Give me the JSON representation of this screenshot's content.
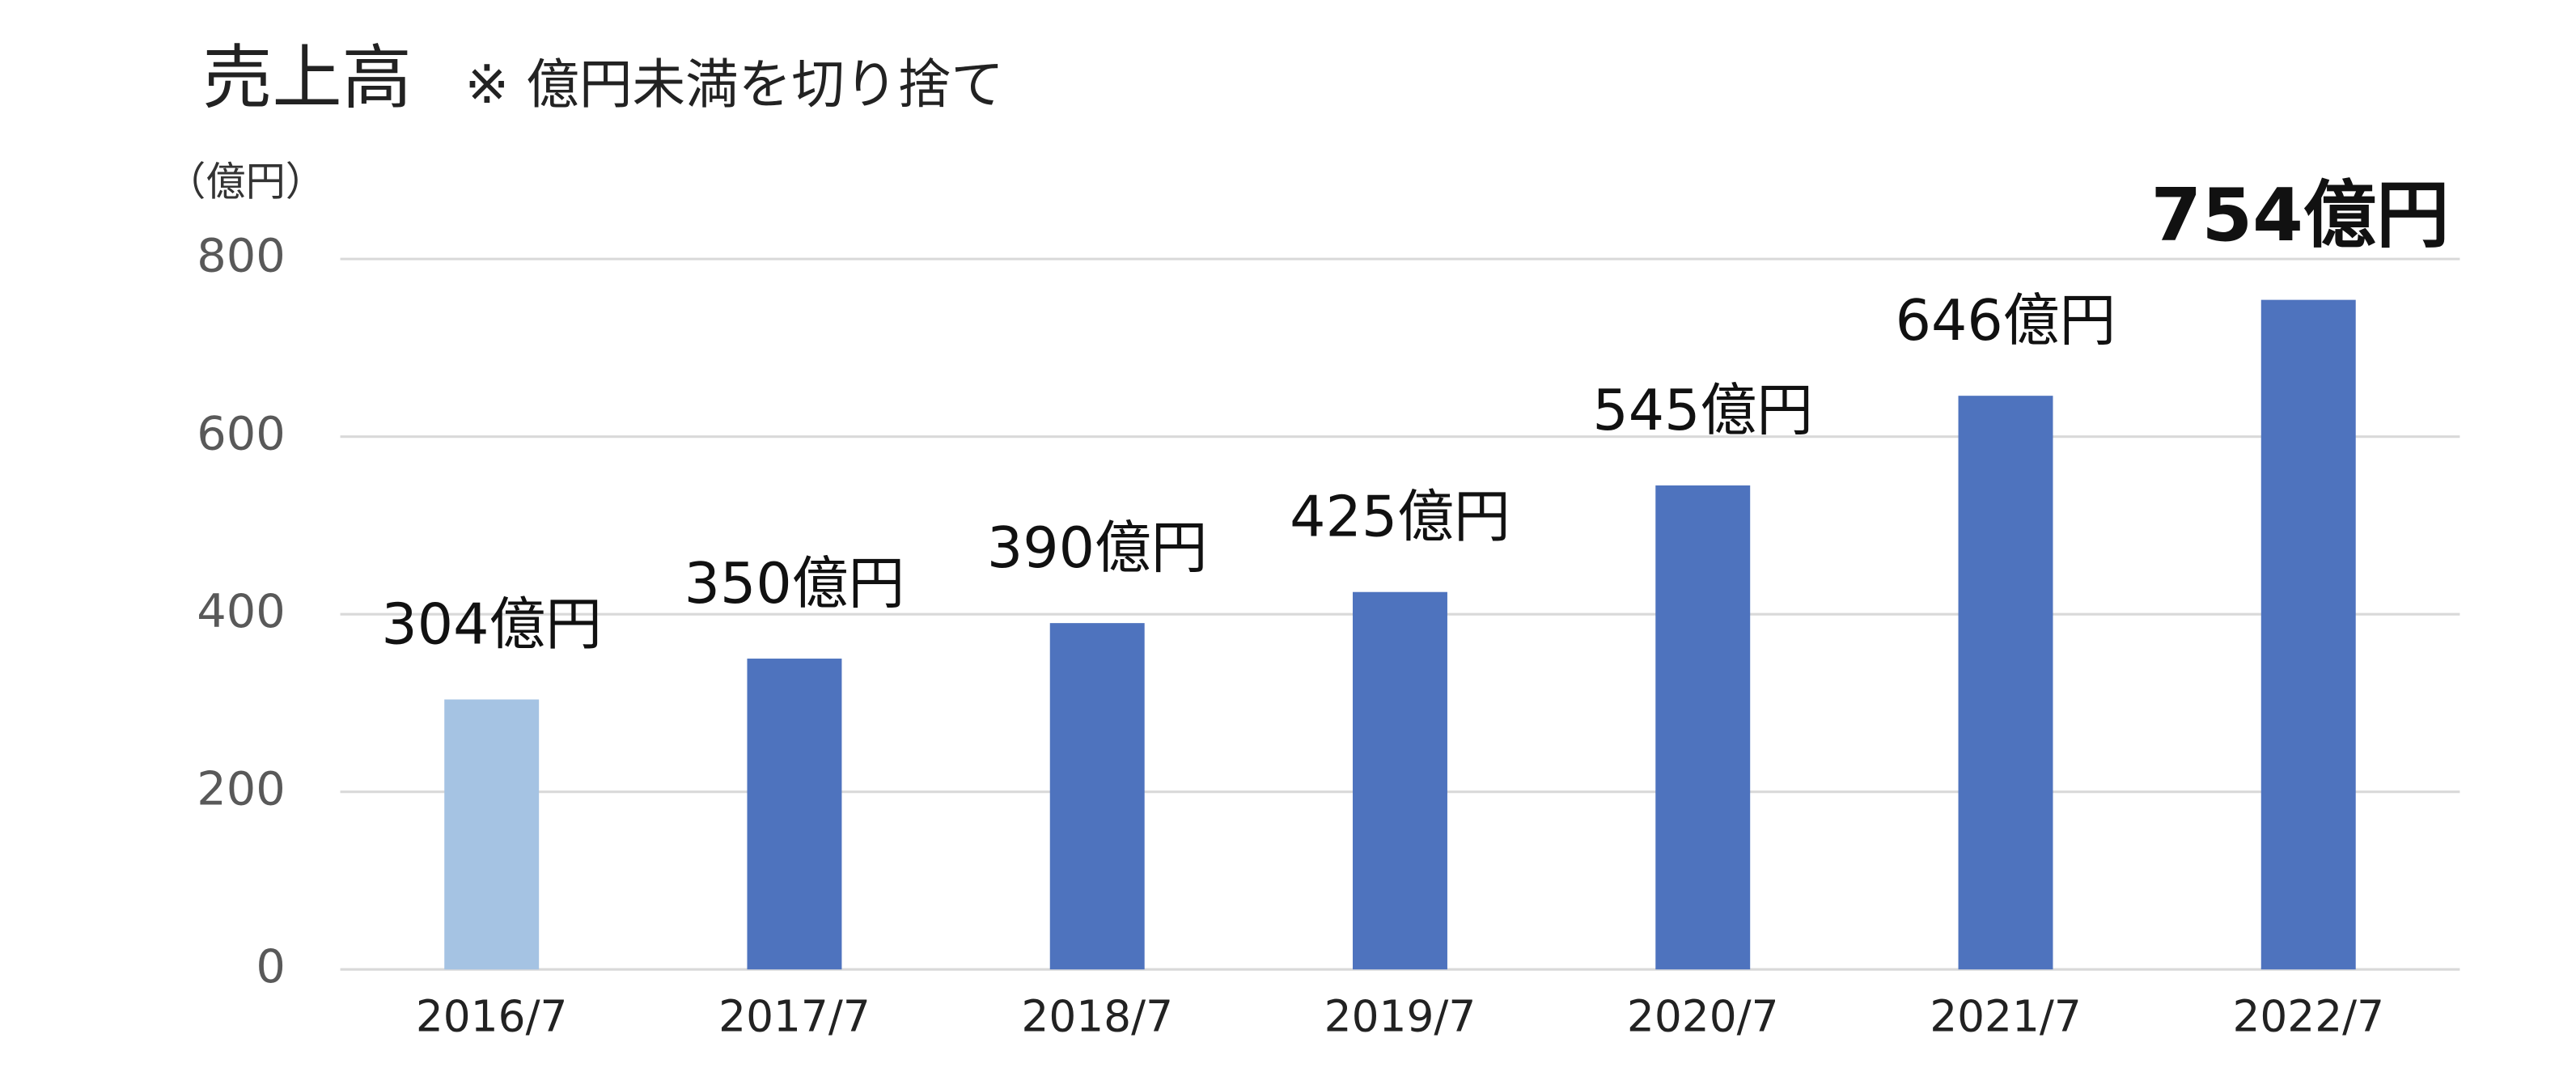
{
  "chart_data": {
    "type": "bar",
    "title": "売上高",
    "subtitle": "※ 億円未満を切り捨て",
    "y_label": "（億円）",
    "categories": [
      "2016/7",
      "2017/7",
      "2018/7",
      "2019/7",
      "2020/7",
      "2021/7",
      "2022/7"
    ],
    "values": [
      304,
      350,
      390,
      425,
      545,
      646,
      754
    ],
    "value_labels": [
      "304億円",
      "350億円",
      "390億円",
      "425億円",
      "545億円",
      "646億円",
      "754億円"
    ],
    "colors": [
      "#a5c3e3",
      "#4e73be",
      "#4e73be",
      "#4e73be",
      "#4e73be",
      "#4e73be",
      "#4e73be"
    ],
    "ylim": [
      0,
      800
    ],
    "yticks": [
      0,
      200,
      400,
      600,
      800
    ],
    "grid": true
  }
}
